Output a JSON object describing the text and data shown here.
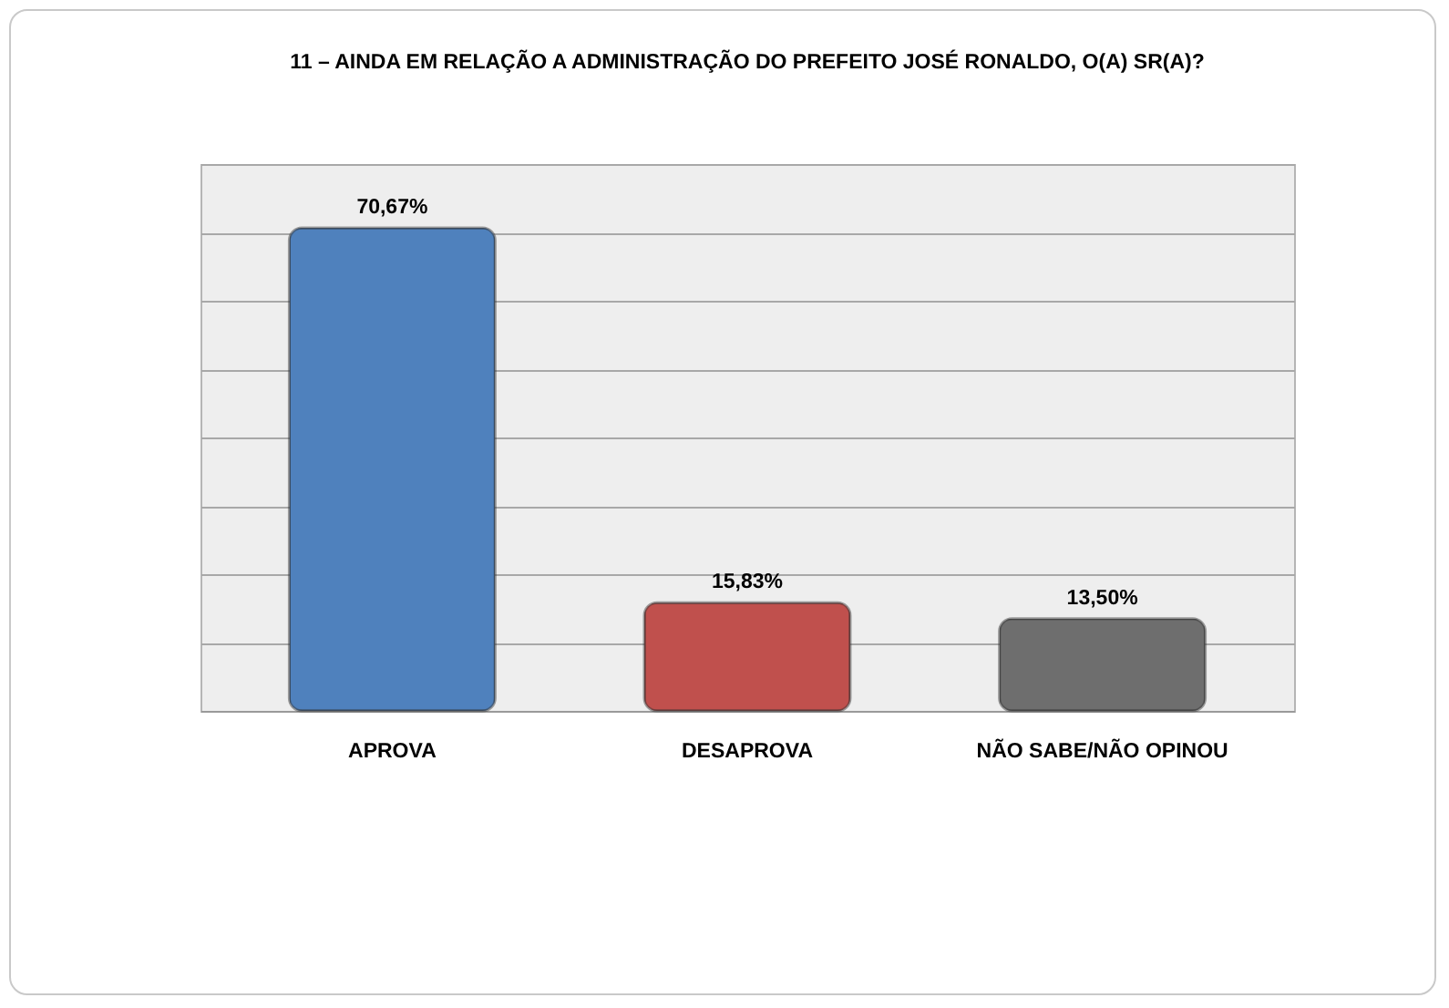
{
  "chart_data": {
    "type": "bar",
    "title": "11 – AINDA EM RELAÇÃO A ADMINISTRAÇÃO DO PREFEITO JOSÉ RONALDO, O(A) SR(A)?",
    "categories": [
      "APROVA",
      "DESAPROVA",
      "NÃO SABE/NÃO OPINOU"
    ],
    "values": [
      70.67,
      15.83,
      13.5
    ],
    "colors": [
      "#4f81bd",
      "#c0504d",
      "#6e6e6e"
    ],
    "value_labels": [
      "70,67%",
      "15,83%",
      "13,50%"
    ],
    "grid": "y",
    "tick_labels": "x"
  }
}
